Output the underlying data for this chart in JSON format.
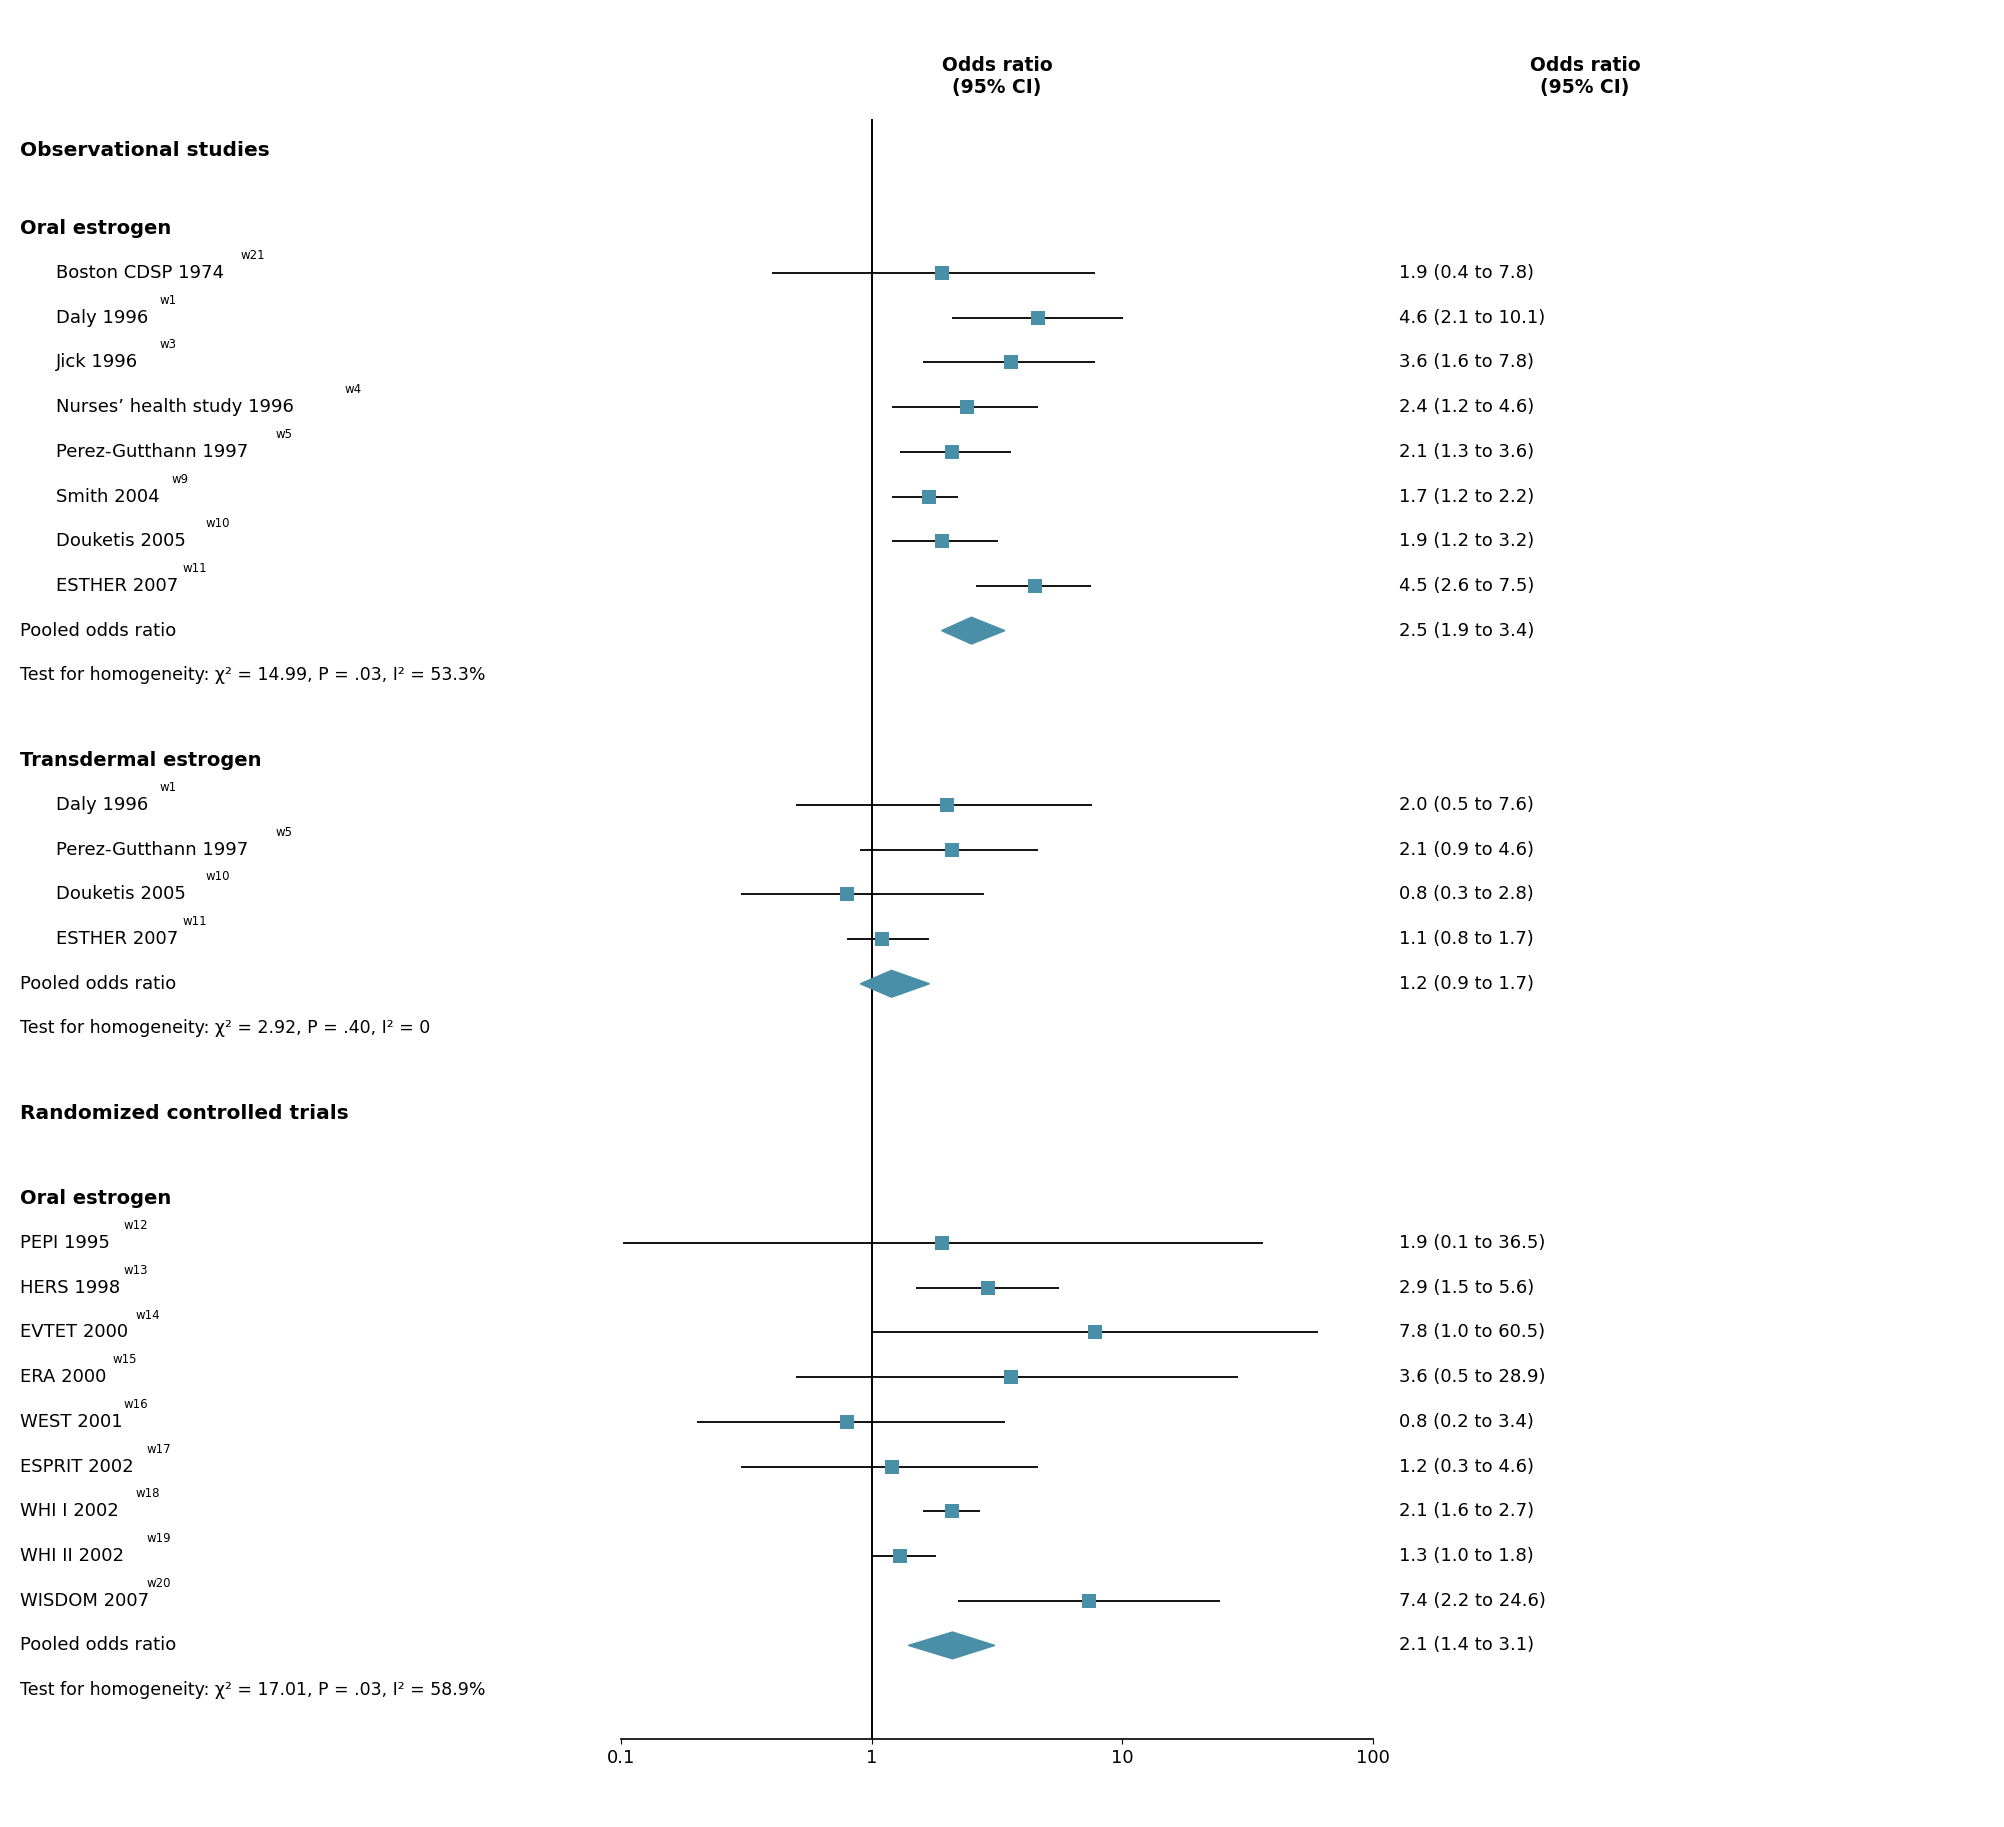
{
  "color": "#4a8fa8",
  "bg_color": "#ffffff",
  "obs_oral_studies": [
    {
      "label": "Boston CDSP 1974",
      "sup": "w21",
      "or": 1.9,
      "ci_lo": 0.4,
      "ci_hi": 7.8,
      "or_text": "1.9 (0.4 to 7.8)"
    },
    {
      "label": "Daly 1996",
      "sup": "w1",
      "or": 4.6,
      "ci_lo": 2.1,
      "ci_hi": 10.1,
      "or_text": "4.6 (2.1 to 10.1)"
    },
    {
      "label": "Jick 1996",
      "sup": "w3",
      "or": 3.6,
      "ci_lo": 1.6,
      "ci_hi": 7.8,
      "or_text": "3.6 (1.6 to 7.8)"
    },
    {
      "label": "Nurses’ health study 1996",
      "sup": "w4",
      "or": 2.4,
      "ci_lo": 1.2,
      "ci_hi": 4.6,
      "or_text": "2.4 (1.2 to 4.6)"
    },
    {
      "label": "Perez-Gutthann 1997",
      "sup": "w5",
      "or": 2.1,
      "ci_lo": 1.3,
      "ci_hi": 3.6,
      "or_text": "2.1 (1.3 to 3.6)"
    },
    {
      "label": "Smith 2004",
      "sup": "w9",
      "or": 1.7,
      "ci_lo": 1.2,
      "ci_hi": 2.2,
      "or_text": "1.7 (1.2 to 2.2)"
    },
    {
      "label": "Douketis 2005",
      "sup": "w10",
      "or": 1.9,
      "ci_lo": 1.2,
      "ci_hi": 3.2,
      "or_text": "1.9 (1.2 to 3.2)"
    },
    {
      "label": "ESTHER 2007",
      "sup": "w11",
      "or": 4.5,
      "ci_lo": 2.6,
      "ci_hi": 7.5,
      "or_text": "4.5 (2.6 to 7.5)"
    }
  ],
  "obs_oral_pooled": {
    "or": 2.5,
    "ci_lo": 1.9,
    "ci_hi": 3.4,
    "or_text": "2.5 (1.9 to 3.4)"
  },
  "obs_oral_homog": "Test for homogeneity: χ² = 14.99, P = .03, I² = 53.3%",
  "obs_trans_studies": [
    {
      "label": "Daly 1996",
      "sup": "w1",
      "or": 2.0,
      "ci_lo": 0.5,
      "ci_hi": 7.6,
      "or_text": "2.0 (0.5 to 7.6)"
    },
    {
      "label": "Perez-Gutthann 1997",
      "sup": "w5",
      "or": 2.1,
      "ci_lo": 0.9,
      "ci_hi": 4.6,
      "or_text": "2.1 (0.9 to 4.6)"
    },
    {
      "label": "Douketis 2005",
      "sup": "w10",
      "or": 0.8,
      "ci_lo": 0.3,
      "ci_hi": 2.8,
      "or_text": "0.8 (0.3 to 2.8)"
    },
    {
      "label": "ESTHER 2007",
      "sup": "w11",
      "or": 1.1,
      "ci_lo": 0.8,
      "ci_hi": 1.7,
      "or_text": "1.1 (0.8 to 1.7)"
    }
  ],
  "obs_trans_pooled": {
    "or": 1.2,
    "ci_lo": 0.9,
    "ci_hi": 1.7,
    "or_text": "1.2 (0.9 to 1.7)"
  },
  "obs_trans_homog": "Test for homogeneity: χ² = 2.92, P = .40, I² = 0",
  "rct_oral_studies": [
    {
      "label": "PEPI 1995",
      "sup": "w12",
      "or": 1.9,
      "ci_lo": 0.1,
      "ci_hi": 36.5,
      "or_text": "1.9 (0.1 to 36.5)"
    },
    {
      "label": "HERS 1998",
      "sup": "w13",
      "or": 2.9,
      "ci_lo": 1.5,
      "ci_hi": 5.6,
      "or_text": "2.9 (1.5 to 5.6)"
    },
    {
      "label": "EVTET 2000",
      "sup": "w14",
      "or": 7.8,
      "ci_lo": 1.0,
      "ci_hi": 60.5,
      "or_text": "7.8 (1.0 to 60.5)"
    },
    {
      "label": "ERA 2000",
      "sup": "w15",
      "or": 3.6,
      "ci_lo": 0.5,
      "ci_hi": 28.9,
      "or_text": "3.6 (0.5 to 28.9)"
    },
    {
      "label": "WEST 2001",
      "sup": "w16",
      "or": 0.8,
      "ci_lo": 0.2,
      "ci_hi": 3.4,
      "or_text": "0.8 (0.2 to 3.4)"
    },
    {
      "label": "ESPRIT 2002",
      "sup": "w17",
      "or": 1.2,
      "ci_lo": 0.3,
      "ci_hi": 4.6,
      "or_text": "1.2 (0.3 to 4.6)"
    },
    {
      "label": "WHI I 2002",
      "sup": "w18",
      "or": 2.1,
      "ci_lo": 1.6,
      "ci_hi": 2.7,
      "or_text": "2.1 (1.6 to 2.7)"
    },
    {
      "label": "WHI II 2002",
      "sup": "w19",
      "or": 1.3,
      "ci_lo": 1.0,
      "ci_hi": 1.8,
      "or_text": "1.3 (1.0 to 1.8)"
    },
    {
      "label": "WISDOM 2007",
      "sup": "w20",
      "or": 7.4,
      "ci_lo": 2.2,
      "ci_hi": 24.6,
      "or_text": "7.4 (2.2 to 24.6)"
    }
  ],
  "rct_oral_pooled": {
    "or": 2.1,
    "ci_lo": 1.4,
    "ci_hi": 3.1,
    "or_text": "2.1 (1.4 to 3.1)"
  },
  "rct_oral_homog": "Test for homogeneity: χ² = 17.01, P = .03, I² = 58.9%",
  "col_header_plot": "Odds ratio\n(95% CI)",
  "col_header_right": "Odds ratio\n(95% CI)"
}
